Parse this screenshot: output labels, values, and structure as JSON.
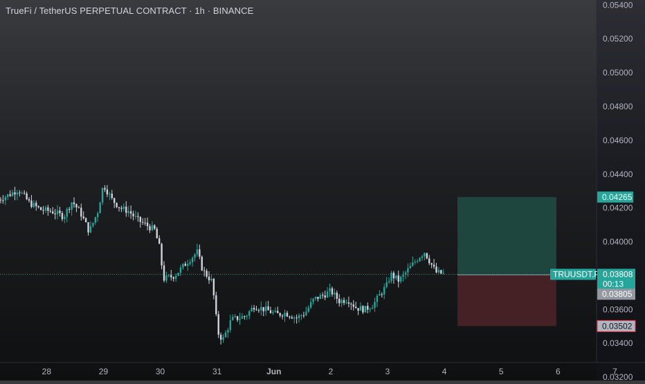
{
  "header": {
    "title": "TrueFi / TetherUS PERPETUAL CONTRACT · 1h · BINANCE"
  },
  "colors": {
    "up": "#26a69a",
    "down": "#d1d4dc",
    "profit_zone": "#1f4b43",
    "loss_zone": "#4a2227",
    "price_label_bg": "#26a69a",
    "entry_label_bg": "#9598a1",
    "stop_label_bg": "#b2b5be"
  },
  "chart_data": {
    "type": "candlestick",
    "title": "TrueFi / TetherUS PERPETUAL CONTRACT · 1h · BINANCE",
    "symbol": "TRUUSDT.P",
    "interval": "1h",
    "exchange": "BINANCE",
    "ylim": [
      0.0318,
      0.0543
    ],
    "y_ticks": [
      "0.03200",
      "0.03400",
      "0.03600",
      "0.03800",
      "0.04000",
      "0.04200",
      "0.04400",
      "0.04600",
      "0.04800",
      "0.05000",
      "0.05200",
      "0.05400"
    ],
    "x_ticks": [
      {
        "label": "28",
        "day": 0
      },
      {
        "label": "29",
        "day": 1
      },
      {
        "label": "30",
        "day": 2
      },
      {
        "label": "31",
        "day": 3
      },
      {
        "label": "Jun",
        "day": 4
      },
      {
        "label": "2",
        "day": 5
      },
      {
        "label": "3",
        "day": 6
      },
      {
        "label": "4",
        "day": 7
      },
      {
        "label": "5",
        "day": 8
      },
      {
        "label": "6",
        "day": 9
      },
      {
        "label": "7",
        "day": 10
      }
    ],
    "x_range_days": [
      -0.82,
      10.53
    ],
    "last_price": 0.03808,
    "last_price_label": "TRUUSDT.P",
    "last_price_text": "0.03808",
    "countdown": "00:13",
    "position": {
      "type": "long",
      "entry": 0.03805,
      "entry_text": "0.03805",
      "target": 0.04265,
      "target_text": "0.04265",
      "stop": 0.03502,
      "stop_text": "0.03502",
      "start_day": 7.23,
      "end_day": 8.97
    },
    "price_path": [
      [
        -0.85,
        0.0425
      ],
      [
        -0.65,
        0.0428
      ],
      [
        -0.5,
        0.0431
      ],
      [
        -0.3,
        0.0423
      ],
      [
        -0.1,
        0.0419
      ],
      [
        0.1,
        0.0418
      ],
      [
        0.3,
        0.0415
      ],
      [
        0.45,
        0.0424
      ],
      [
        0.6,
        0.0417
      ],
      [
        0.75,
        0.0406
      ],
      [
        0.9,
        0.0418
      ],
      [
        1.0,
        0.0434
      ],
      [
        1.15,
        0.0425
      ],
      [
        1.3,
        0.042
      ],
      [
        1.45,
        0.0418
      ],
      [
        1.6,
        0.0413
      ],
      [
        1.75,
        0.041
      ],
      [
        1.9,
        0.0407
      ],
      [
        2.0,
        0.0395
      ],
      [
        2.05,
        0.0378
      ],
      [
        2.25,
        0.038
      ],
      [
        2.5,
        0.0389
      ],
      [
        2.65,
        0.0394
      ],
      [
        2.75,
        0.0383
      ],
      [
        2.9,
        0.0377
      ],
      [
        2.97,
        0.0362
      ],
      [
        3.0,
        0.0347
      ],
      [
        3.1,
        0.0342
      ],
      [
        3.25,
        0.0354
      ],
      [
        3.5,
        0.0356
      ],
      [
        3.65,
        0.0362
      ],
      [
        3.85,
        0.036
      ],
      [
        4.05,
        0.0357
      ],
      [
        4.2,
        0.0358
      ],
      [
        4.4,
        0.0355
      ],
      [
        4.55,
        0.0358
      ],
      [
        4.7,
        0.0366
      ],
      [
        4.9,
        0.0369
      ],
      [
        5.0,
        0.0371
      ],
      [
        5.15,
        0.0365
      ],
      [
        5.3,
        0.0366
      ],
      [
        5.45,
        0.0361
      ],
      [
        5.6,
        0.036
      ],
      [
        5.75,
        0.0363
      ],
      [
        5.85,
        0.0368
      ],
      [
        6.0,
        0.0375
      ],
      [
        6.05,
        0.0381
      ],
      [
        6.2,
        0.0377
      ],
      [
        6.4,
        0.0385
      ],
      [
        6.55,
        0.0391
      ],
      [
        6.65,
        0.0394
      ],
      [
        6.75,
        0.0388
      ],
      [
        6.85,
        0.0382
      ],
      [
        7.0,
        0.0381
      ]
    ]
  }
}
